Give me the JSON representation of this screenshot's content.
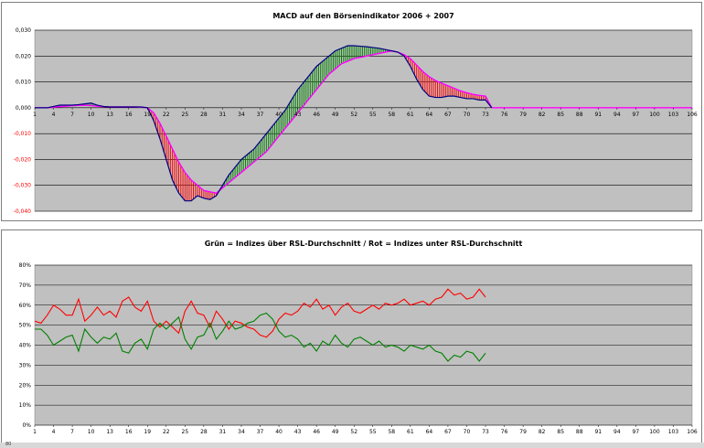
{
  "chart_data": [
    {
      "type": "line",
      "title": "MACD auf den Börsenindikator 2006 + 2007",
      "xlabel": "",
      "ylabel": "",
      "ylim": [
        -0.04,
        0.03
      ],
      "y_tick_labels": [
        "0,030",
        "0,020",
        "0,010",
        "0,000",
        "-0,010",
        "-0,020",
        "-0,030",
        "-0,040"
      ],
      "y_tick_values": [
        0.03,
        0.02,
        0.01,
        0.0,
        -0.01,
        -0.02,
        -0.03,
        -0.04
      ],
      "x_tick_labels": [
        "1",
        "4",
        "7",
        "10",
        "13",
        "16",
        "19",
        "22",
        "25",
        "28",
        "31",
        "34",
        "37",
        "40",
        "43",
        "46",
        "49",
        "52",
        "55",
        "58",
        "61",
        "64",
        "67",
        "70",
        "73",
        "76",
        "79",
        "82",
        "85",
        "88",
        "91",
        "94",
        "97",
        "100",
        "103",
        "106"
      ],
      "x_range": [
        1,
        106
      ],
      "grid": true,
      "legend": "none",
      "colors": {
        "plot_bg": "#c0c0c0",
        "macd_line": "#000080",
        "signal_line": "#ff00ff",
        "above_fill": "#008000",
        "below_fill": "#ff0000"
      },
      "series": [
        {
          "x": [
            1,
            2,
            3,
            4,
            5,
            6,
            7,
            8,
            9,
            10,
            11,
            12,
            13,
            14,
            15,
            16,
            17,
            18,
            19,
            20,
            21,
            22,
            23,
            24,
            25,
            26,
            27,
            28,
            29,
            30,
            31,
            32,
            33,
            34,
            35,
            36,
            37,
            38,
            39,
            40,
            41,
            42,
            43,
            44,
            45,
            46,
            47,
            48,
            49,
            50,
            51,
            52,
            53,
            54,
            55,
            56,
            57,
            58,
            59,
            60,
            61,
            62,
            63,
            64,
            65,
            66,
            67,
            68,
            69,
            70,
            71,
            72,
            73,
            74
          ],
          "values": [
            0.0,
            0.0,
            0.0,
            0.0005,
            0.001,
            0.001,
            0.001,
            0.0012,
            0.0015,
            0.0018,
            0.001,
            0.0005,
            0.0003,
            0.0003,
            0.0003,
            0.0003,
            0.0003,
            0.0003,
            0.0,
            -0.005,
            -0.012,
            -0.02,
            -0.028,
            -0.033,
            -0.036,
            -0.036,
            -0.034,
            -0.035,
            -0.0355,
            -0.034,
            -0.03,
            -0.026,
            -0.023,
            -0.02,
            -0.018,
            -0.016,
            -0.013,
            -0.01,
            -0.007,
            -0.004,
            -0.001,
            0.003,
            0.007,
            0.01,
            0.013,
            0.016,
            0.018,
            0.02,
            0.022,
            0.023,
            0.024,
            0.024,
            0.0238,
            0.0236,
            0.0233,
            0.023,
            0.0225,
            0.022,
            0.0215,
            0.02,
            0.016,
            0.011,
            0.007,
            0.0045,
            0.004,
            0.004,
            0.0045,
            0.0045,
            0.004,
            0.0035,
            0.0035,
            0.003,
            0.003,
            0.0
          ]
        },
        {
          "x": [
            1,
            2,
            3,
            4,
            5,
            6,
            7,
            8,
            9,
            10,
            11,
            12,
            13,
            14,
            15,
            16,
            17,
            18,
            19,
            20,
            21,
            22,
            23,
            24,
            25,
            26,
            27,
            28,
            29,
            30,
            31,
            32,
            33,
            34,
            35,
            36,
            37,
            38,
            39,
            40,
            41,
            42,
            43,
            44,
            45,
            46,
            47,
            48,
            49,
            50,
            51,
            52,
            53,
            54,
            55,
            56,
            57,
            58,
            59,
            60,
            61,
            62,
            63,
            64,
            65,
            66,
            67,
            68,
            69,
            70,
            71,
            72,
            73,
            74,
            75,
            76,
            77,
            78,
            79,
            80,
            81,
            82,
            83,
            84,
            85,
            86,
            87,
            88,
            89,
            90,
            91,
            92,
            93,
            94,
            95,
            96,
            97,
            98,
            99,
            100,
            101,
            102,
            103,
            104,
            105,
            106
          ],
          "values": [
            0.0,
            0.0,
            0.0,
            0.0002,
            0.0004,
            0.0006,
            0.0008,
            0.0009,
            0.001,
            0.0008,
            0.0006,
            0.0004,
            0.0003,
            0.0003,
            0.0003,
            0.0003,
            0.0003,
            0.0002,
            0.0,
            -0.002,
            -0.006,
            -0.011,
            -0.016,
            -0.021,
            -0.025,
            -0.028,
            -0.03,
            -0.032,
            -0.0325,
            -0.033,
            -0.031,
            -0.029,
            -0.027,
            -0.025,
            -0.023,
            -0.021,
            -0.019,
            -0.017,
            -0.014,
            -0.011,
            -0.008,
            -0.005,
            -0.002,
            0.001,
            0.004,
            0.007,
            0.01,
            0.013,
            0.015,
            0.017,
            0.018,
            0.019,
            0.0195,
            0.02,
            0.0205,
            0.021,
            0.0215,
            0.022,
            0.0215,
            0.0205,
            0.019,
            0.0165,
            0.014,
            0.012,
            0.0105,
            0.0095,
            0.0085,
            0.0075,
            0.0065,
            0.0058,
            0.0052,
            0.0048,
            0.0045,
            0.0,
            0.0,
            0.0,
            0.0,
            0.0,
            0.0,
            0.0,
            0.0,
            0.0,
            0.0,
            0.0,
            0.0,
            0.0,
            0.0,
            0.0,
            0.0,
            0.0,
            0.0,
            0.0,
            0.0,
            0.0,
            0.0,
            0.0,
            0.0,
            0.0,
            0.0,
            0.0,
            0.0,
            0.0,
            0.0,
            0.0,
            0.0,
            0.0
          ]
        }
      ]
    },
    {
      "type": "line",
      "title": "Grün = Indizes über RSL-Durchschnitt / Rot = Indizes unter RSL-Durchschnitt",
      "xlabel": "",
      "ylabel": "",
      "ylim": [
        0,
        80
      ],
      "y_tick_labels": [
        "80%",
        "70%",
        "60%",
        "50%",
        "40%",
        "30%",
        "20%",
        "10%",
        "0%"
      ],
      "y_tick_values": [
        80,
        70,
        60,
        50,
        40,
        30,
        20,
        10,
        0
      ],
      "x_tick_labels": [
        "1",
        "4",
        "7",
        "10",
        "13",
        "16",
        "19",
        "22",
        "25",
        "28",
        "31",
        "34",
        "37",
        "40",
        "43",
        "46",
        "49",
        "52",
        "55",
        "58",
        "61",
        "64",
        "67",
        "70",
        "73",
        "76",
        "79",
        "82",
        "85",
        "88",
        "91",
        "94",
        "97",
        "100",
        "103",
        "106"
      ],
      "x_range": [
        1,
        106
      ],
      "grid": true,
      "legend": "none",
      "colors": {
        "plot_bg": "#c0c0c0",
        "red_line": "#ff0000",
        "green_line": "#008000"
      },
      "series": [
        {
          "x": [
            1,
            2,
            3,
            4,
            5,
            6,
            7,
            8,
            9,
            10,
            11,
            12,
            13,
            14,
            15,
            16,
            17,
            18,
            19,
            20,
            21,
            22,
            23,
            24,
            25,
            26,
            27,
            28,
            29,
            30,
            31,
            32,
            33,
            34,
            35,
            36,
            37,
            38,
            39,
            40,
            41,
            42,
            43,
            44,
            45,
            46,
            47,
            48,
            49,
            50,
            51,
            52,
            53,
            54,
            55,
            56,
            57,
            58,
            59,
            60,
            61,
            62,
            63,
            64,
            65,
            66,
            67,
            68,
            69,
            70,
            71,
            72,
            73
          ],
          "values": [
            52,
            51,
            55,
            60,
            58,
            55,
            55,
            63,
            52,
            55,
            59,
            55,
            57,
            54,
            62,
            64,
            59,
            57,
            62,
            52,
            49,
            52,
            49,
            46,
            57,
            62,
            56,
            55,
            49,
            57,
            53,
            48,
            52,
            51,
            49,
            48,
            45,
            44,
            47,
            53,
            56,
            55,
            57,
            61,
            59,
            63,
            58,
            60,
            55,
            59,
            61,
            57,
            56,
            58,
            60,
            58,
            61,
            60,
            61,
            63,
            60,
            61,
            62,
            60,
            63,
            64,
            68,
            65,
            66,
            63,
            64,
            68,
            64
          ]
        },
        {
          "x": [
            1,
            2,
            3,
            4,
            5,
            6,
            7,
            8,
            9,
            10,
            11,
            12,
            13,
            14,
            15,
            16,
            17,
            18,
            19,
            20,
            21,
            22,
            23,
            24,
            25,
            26,
            27,
            28,
            29,
            30,
            31,
            32,
            33,
            34,
            35,
            36,
            37,
            38,
            39,
            40,
            41,
            42,
            43,
            44,
            45,
            46,
            47,
            48,
            49,
            50,
            51,
            52,
            53,
            54,
            55,
            56,
            57,
            58,
            59,
            60,
            61,
            62,
            63,
            64,
            65,
            66,
            67,
            68,
            69,
            70,
            71,
            72,
            73
          ],
          "values": [
            48,
            48,
            45,
            40,
            42,
            44,
            45,
            37,
            48,
            44,
            41,
            44,
            43,
            46,
            37,
            36,
            41,
            43,
            38,
            48,
            51,
            48,
            51,
            54,
            43,
            38,
            44,
            45,
            51,
            43,
            47,
            52,
            48,
            49,
            51,
            52,
            55,
            56,
            53,
            47,
            44,
            45,
            43,
            39,
            41,
            37,
            42,
            40,
            45,
            41,
            39,
            43,
            44,
            42,
            40,
            42,
            39,
            40,
            39,
            37,
            40,
            39,
            38,
            40,
            37,
            36,
            32,
            35,
            34,
            37,
            36,
            32,
            36
          ]
        }
      ]
    }
  ],
  "statusbar": {
    "zoom": "80"
  }
}
